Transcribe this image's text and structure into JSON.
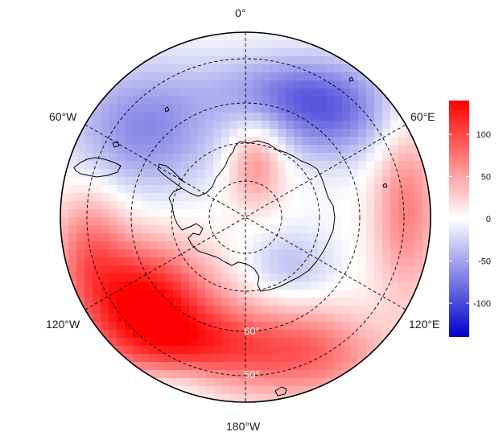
{
  "longitude_labels": {
    "lon_0": "0°",
    "lon_60w": "60°W",
    "lon_60e": "60°E",
    "lon_120w": "120°W",
    "lon_120e": "120°E",
    "lon_180": "180°W"
  },
  "latitude_labels": [
    "60°",
    "50°"
  ],
  "colorbar": {
    "ticks": [
      "100",
      "50",
      "0",
      "-50",
      "-100"
    ],
    "tick_values": [
      100,
      50,
      0,
      -50,
      -100
    ],
    "range": [
      -140,
      140
    ],
    "colors": {
      "low": "#0000cc",
      "mid": "#ffffff",
      "high": "#ff0000"
    }
  },
  "map": {
    "projection": "south-polar-stereographic",
    "coastline_color": "#000000",
    "graticule": "dashed"
  }
}
